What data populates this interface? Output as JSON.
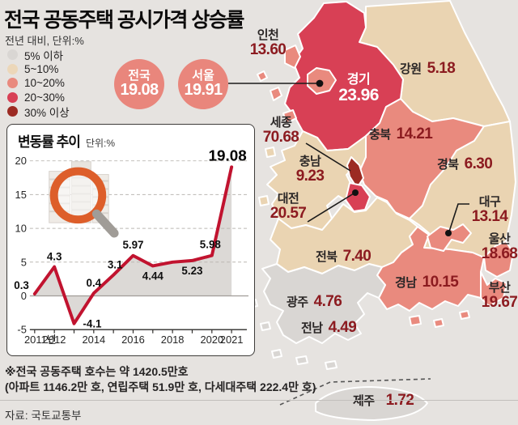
{
  "title": "전국 공동주택 공시가격 상승률",
  "subtitle": "전년 대비, 단위:%",
  "legend": {
    "items": [
      {
        "label": "5% 이하",
        "color": "#d9d6d3"
      },
      {
        "label": "5~10%",
        "color": "#ecd7b9"
      },
      {
        "label": "10~20%",
        "color": "#e98a7e"
      },
      {
        "label": "20~30%",
        "color": "#d84055"
      },
      {
        "label": "30% 이상",
        "color": "#9c2b23"
      }
    ]
  },
  "badges": [
    {
      "name": "전국",
      "value": "19.08"
    },
    {
      "name": "서울",
      "value": "19.91"
    }
  ],
  "chart_panel": {
    "title": "변동률 추이",
    "unit": "단위:%"
  },
  "chart_data": {
    "type": "line",
    "title": "변동률 추이",
    "unit": "단위:%",
    "x": [
      2011,
      2012,
      2013,
      2014,
      2015,
      2016,
      2017,
      2018,
      2019,
      2020,
      2021
    ],
    "values": [
      0.3,
      4.3,
      -4.1,
      0.4,
      3.1,
      5.97,
      4.44,
      5.0,
      5.23,
      5.98,
      19.08
    ],
    "point_labels": [
      "0.3",
      "4.3",
      "-4.1",
      "0.4",
      "3.1",
      "5.97",
      "4.44",
      "",
      "5.23",
      "5.98",
      "19.08"
    ],
    "yticks": [
      20,
      15,
      10,
      5,
      0,
      -5
    ],
    "ylim": [
      -5,
      20
    ],
    "xtick_labels": {
      "0": "2011년",
      "1": "2012",
      "3": "2014",
      "5": "2016",
      "7": "2018",
      "9": "2020",
      "10": "2021"
    },
    "line_color": "#c1132f",
    "area_color": "#dcd9d6",
    "grid": "dashed-horizontal"
  },
  "map": {
    "seoul_color": "#e98a7e",
    "regions": [
      {
        "name": "인천",
        "value": "13.60",
        "color": "#e98a7e"
      },
      {
        "name": "경기",
        "value": "23.96",
        "color": "#d84055"
      },
      {
        "name": "강원",
        "value": "5.18",
        "color": "#ead4b2"
      },
      {
        "name": "세종",
        "value": "70.68",
        "color": "#9c2b23"
      },
      {
        "name": "충북",
        "value": "14.21",
        "color": "#e98a7e"
      },
      {
        "name": "충남",
        "value": "9.23",
        "color": "#ead4b2"
      },
      {
        "name": "대전",
        "value": "20.57",
        "color": "#d84055"
      },
      {
        "name": "경북",
        "value": "6.30",
        "color": "#ead4b2"
      },
      {
        "name": "대구",
        "value": "13.14",
        "color": "#e98a7e"
      },
      {
        "name": "전북",
        "value": "7.40",
        "color": "#ead4b2"
      },
      {
        "name": "울산",
        "value": "18.68",
        "color": "#e98a7e"
      },
      {
        "name": "경남",
        "value": "10.15",
        "color": "#e98a7e"
      },
      {
        "name": "부산",
        "value": "19.67",
        "color": "#e98a7e"
      },
      {
        "name": "광주",
        "value": "4.76",
        "color": "#d9d6d3"
      },
      {
        "name": "전남",
        "value": "4.49",
        "color": "#d9d6d3"
      },
      {
        "name": "제주",
        "value": "1.72",
        "color": "#d9d6d3"
      }
    ]
  },
  "footnote": {
    "line1": "※전국 공동주택 호수는 약 1420.5만호",
    "line2": "(아파트 1146.2만 호, 연립주택 51.9만 호, 다세대주택 222.4만 호)"
  },
  "source": "자료: 국토교통부",
  "colors": {
    "sea": "#e6e3e0",
    "badge": "#e9867c",
    "value_text": "#8c1b20",
    "line": "#c1132f"
  }
}
